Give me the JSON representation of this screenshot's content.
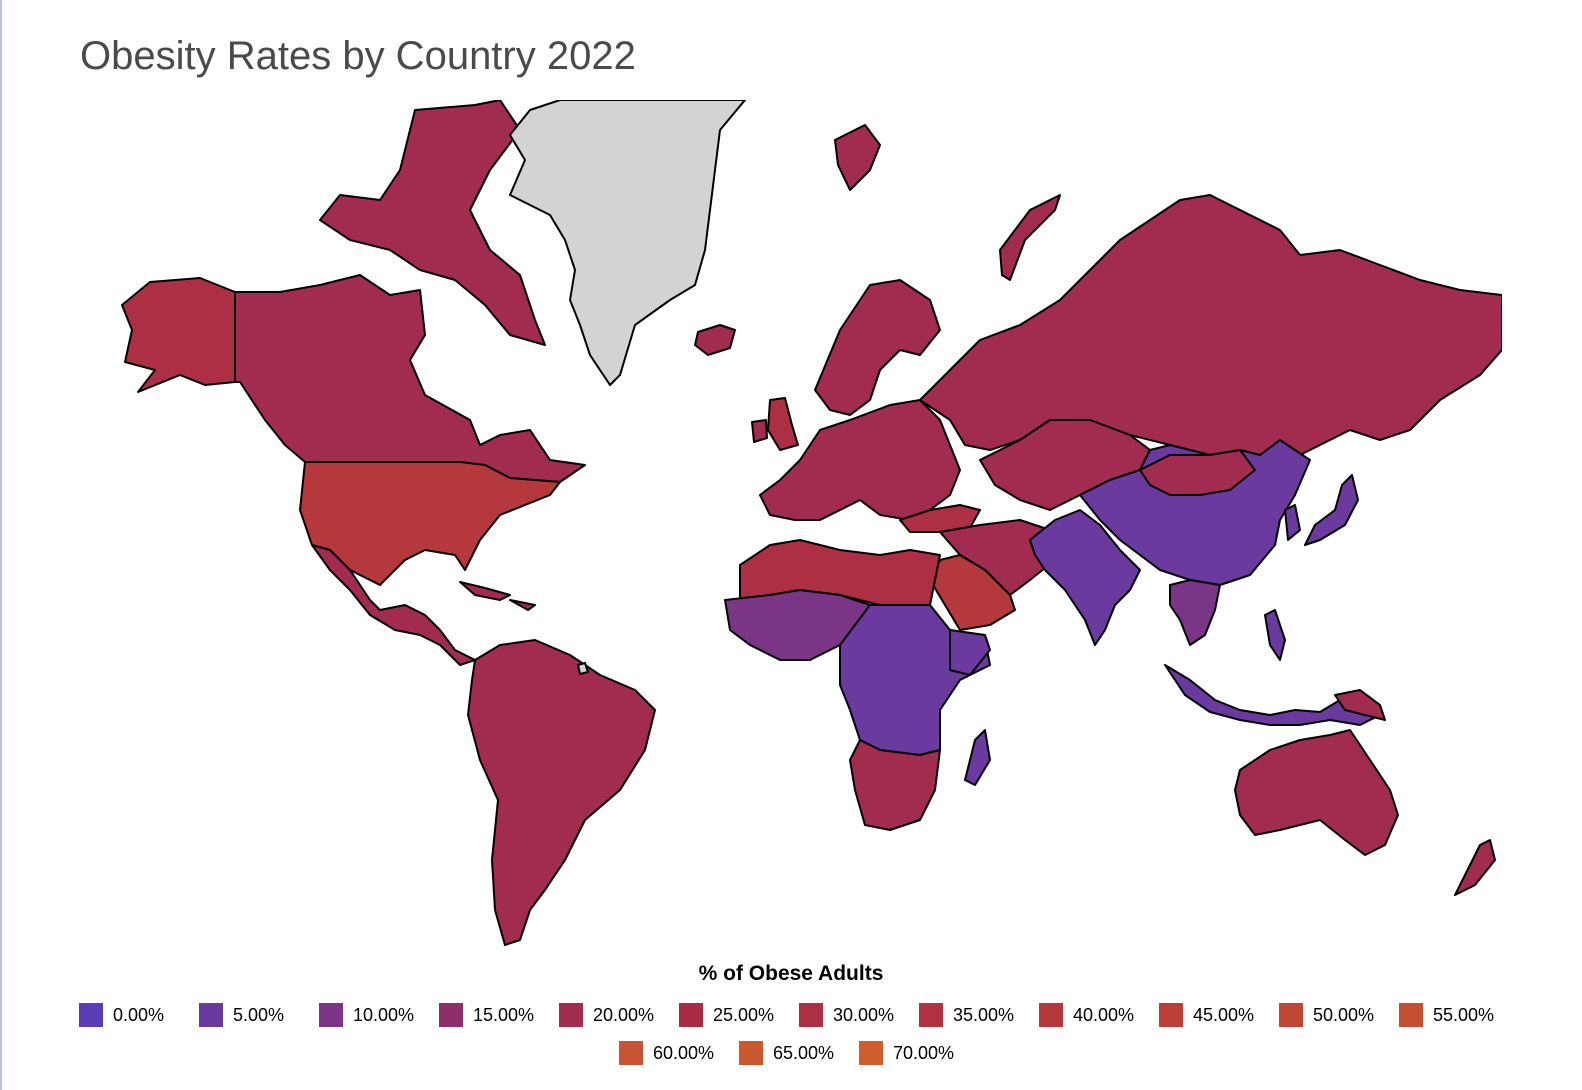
{
  "title": "Obesity Rates by Country 2022",
  "legend": {
    "title": "% of Obese Adults",
    "items": [
      {
        "label": "0.00%",
        "color": "#5b3db8"
      },
      {
        "label": "5.00%",
        "color": "#6a3a9f"
      },
      {
        "label": "10.00%",
        "color": "#7a3586"
      },
      {
        "label": "15.00%",
        "color": "#8e2f6a"
      },
      {
        "label": "20.00%",
        "color": "#a22c50"
      },
      {
        "label": "25.00%",
        "color": "#a82c44"
      },
      {
        "label": "30.00%",
        "color": "#ad2f43"
      },
      {
        "label": "35.00%",
        "color": "#b03240"
      },
      {
        "label": "40.00%",
        "color": "#b5393c"
      },
      {
        "label": "45.00%",
        "color": "#ba4039"
      },
      {
        "label": "50.00%",
        "color": "#c04736"
      },
      {
        "label": "55.00%",
        "color": "#c44e33"
      },
      {
        "label": "60.00%",
        "color": "#c85431"
      },
      {
        "label": "65.00%",
        "color": "#cb592f"
      },
      {
        "label": "70.00%",
        "color": "#ce5e2d"
      }
    ]
  },
  "map_colors": {
    "no_data": "#d3d3d3",
    "low": "#6a3a9f",
    "lower_mid": "#7a3586",
    "mid": "#a22c50",
    "high": "#ad2f43",
    "higher": "#b5393c"
  }
}
